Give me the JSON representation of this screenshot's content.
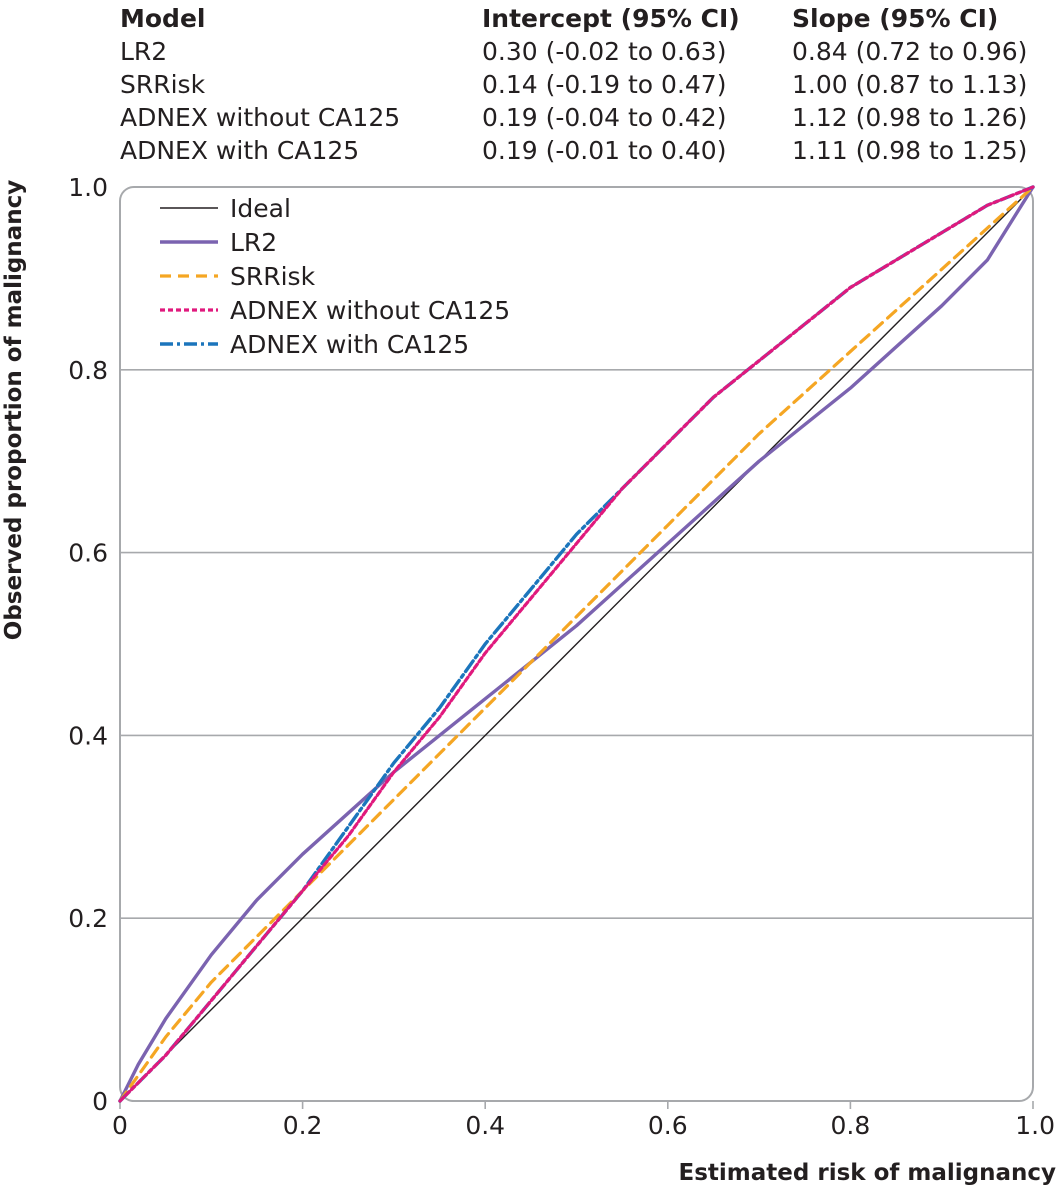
{
  "table": {
    "headers": [
      "Model",
      "Intercept (95% CI)",
      "Slope (95% CI)"
    ],
    "rows": [
      [
        "LR2",
        "0.30 (-0.02 to 0.63)",
        "0.84 (0.72 to 0.96)"
      ],
      [
        "SRRisk",
        "0.14 (-0.19 to 0.47)",
        "1.00 (0.87 to 1.13)"
      ],
      [
        "ADNEX without CA125",
        "0.19 (-0.04 to 0.42)",
        "1.12 (0.98 to 1.26)"
      ],
      [
        "ADNEX with CA125",
        "0.19 (-0.01 to 0.40)",
        "1.11 (0.98 to 1.25)"
      ]
    ]
  },
  "chart_data": {
    "type": "line",
    "xlabel": "Estimated risk of malignancy",
    "ylabel": "Observed proportion of malignancy",
    "xlim": [
      0,
      1
    ],
    "ylim": [
      0,
      1
    ],
    "x_ticks": [
      "0",
      "0.2",
      "0.4",
      "0.6",
      "0.8",
      "1.0"
    ],
    "y_ticks": [
      "0",
      "0.2",
      "0.4",
      "0.6",
      "0.8",
      "1.0"
    ],
    "grid": "horizontal",
    "legend_position": "top-left",
    "series": [
      {
        "name": "Ideal",
        "color": "#231f20",
        "style": "solid-thin",
        "x": [
          0,
          1
        ],
        "y": [
          0,
          1
        ]
      },
      {
        "name": "LR2",
        "color": "#7b63b0",
        "style": "solid",
        "x": [
          0,
          0.02,
          0.05,
          0.1,
          0.15,
          0.2,
          0.3,
          0.4,
          0.5,
          0.6,
          0.7,
          0.8,
          0.9,
          0.95,
          1.0
        ],
        "y": [
          0,
          0.04,
          0.09,
          0.16,
          0.22,
          0.27,
          0.36,
          0.44,
          0.52,
          0.61,
          0.7,
          0.78,
          0.87,
          0.92,
          1.0
        ]
      },
      {
        "name": "SRRisk",
        "color": "#f5a623",
        "style": "dashed",
        "x": [
          0,
          0.05,
          0.1,
          0.2,
          0.3,
          0.4,
          0.5,
          0.6,
          0.7,
          0.8,
          0.9,
          1.0
        ],
        "y": [
          0,
          0.07,
          0.13,
          0.23,
          0.33,
          0.43,
          0.53,
          0.63,
          0.73,
          0.82,
          0.91,
          1.0
        ]
      },
      {
        "name": "ADNEX without CA125",
        "color": "#e0197d",
        "style": "dotted",
        "x": [
          0,
          0.05,
          0.1,
          0.15,
          0.2,
          0.25,
          0.3,
          0.35,
          0.4,
          0.45,
          0.5,
          0.55,
          0.6,
          0.65,
          0.7,
          0.75,
          0.8,
          0.85,
          0.9,
          0.95,
          1.0
        ],
        "y": [
          0,
          0.05,
          0.11,
          0.17,
          0.23,
          0.29,
          0.36,
          0.42,
          0.49,
          0.55,
          0.61,
          0.67,
          0.72,
          0.77,
          0.81,
          0.85,
          0.89,
          0.92,
          0.95,
          0.98,
          1.0
        ]
      },
      {
        "name": "ADNEX with CA125",
        "color": "#1b75bc",
        "style": "dashdot",
        "x": [
          0,
          0.05,
          0.1,
          0.15,
          0.2,
          0.25,
          0.3,
          0.35,
          0.4,
          0.45,
          0.5,
          0.55,
          0.6,
          0.65,
          0.7,
          0.75,
          0.8,
          0.85,
          0.9,
          0.95,
          1.0
        ],
        "y": [
          0,
          0.05,
          0.11,
          0.17,
          0.23,
          0.3,
          0.37,
          0.43,
          0.5,
          0.56,
          0.62,
          0.67,
          0.72,
          0.77,
          0.81,
          0.85,
          0.89,
          0.92,
          0.95,
          0.98,
          1.0
        ]
      }
    ]
  }
}
